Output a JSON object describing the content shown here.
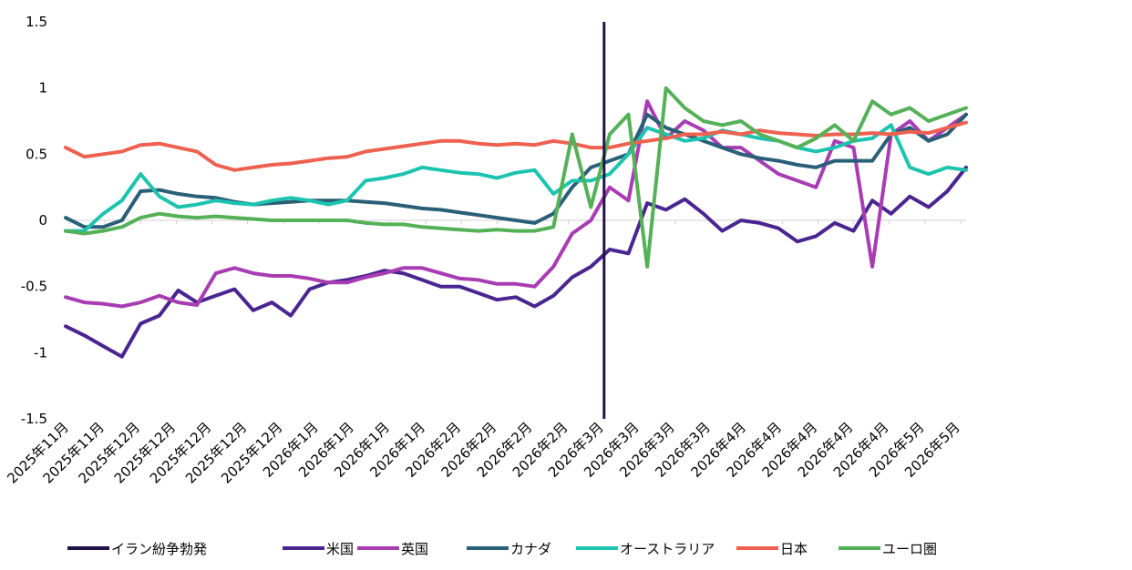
{
  "chart_data": {
    "type": "line",
    "ylim": [
      -1.5,
      1.5
    ],
    "y_ticks": [
      "1.5",
      "1",
      "0.5",
      "0",
      "-0.5",
      "-1",
      "-1.5"
    ],
    "y_tick_values": [
      1.5,
      1,
      0.5,
      0,
      -0.5,
      -1,
      -1.5
    ],
    "x_ticks": [
      "2025年11月",
      "2025年11月",
      "2025年12月",
      "2025年12月",
      "2025年12月",
      "2025年12月",
      "2025年12月",
      "2026年1月",
      "2026年1月",
      "2026年1月",
      "2026年1月",
      "2026年2月",
      "2026年2月",
      "2026年2月",
      "2026年2月",
      "2026年3月",
      "2026年3月",
      "2026年3月",
      "2026年3月",
      "2026年4月",
      "2026年4月",
      "2026年4月",
      "2026年4月",
      "2026年4月",
      "2026年5月",
      "2026年5月"
    ],
    "event": {
      "name": "イラン紛争勃発",
      "x_index": 15,
      "color": "#23124a"
    },
    "grid": false,
    "legend_position": "bottom",
    "series": [
      {
        "name": "米国",
        "color": "#4a2591",
        "values": [
          -0.8,
          -0.87,
          -0.95,
          -1.03,
          -0.78,
          -0.72,
          -0.53,
          -0.62,
          -0.57,
          -0.52,
          -0.68,
          -0.62,
          -0.72,
          -0.52,
          -0.47,
          -0.45,
          -0.42,
          -0.38,
          -0.4,
          -0.45,
          -0.5,
          -0.5,
          -0.55,
          -0.6,
          -0.58,
          -0.65,
          -0.57,
          -0.43,
          -0.35,
          -0.22,
          -0.25,
          0.13,
          0.08,
          0.16,
          0.05,
          -0.08,
          0.0,
          -0.02,
          -0.06,
          -0.16,
          -0.12,
          -0.02,
          -0.08,
          0.15,
          0.05,
          0.18,
          0.1,
          0.22,
          0.4
        ]
      },
      {
        "name": "英国",
        "color": "#a83db3",
        "values": [
          -0.58,
          -0.62,
          -0.63,
          -0.65,
          -0.62,
          -0.57,
          -0.62,
          -0.64,
          -0.4,
          -0.36,
          -0.4,
          -0.42,
          -0.42,
          -0.44,
          -0.47,
          -0.47,
          -0.43,
          -0.4,
          -0.36,
          -0.36,
          -0.4,
          -0.44,
          -0.45,
          -0.48,
          -0.48,
          -0.5,
          -0.35,
          -0.1,
          0.0,
          0.25,
          0.15,
          0.9,
          0.62,
          0.75,
          0.68,
          0.55,
          0.55,
          0.45,
          0.35,
          0.3,
          0.25,
          0.6,
          0.55,
          -0.35,
          0.65,
          0.75,
          0.6,
          0.7,
          0.8
        ]
      },
      {
        "name": "カナダ",
        "color": "#2a5f78",
        "values": [
          0.02,
          -0.05,
          -0.05,
          0.0,
          0.22,
          0.23,
          0.2,
          0.18,
          0.17,
          0.14,
          0.12,
          0.13,
          0.14,
          0.15,
          0.15,
          0.15,
          0.14,
          0.13,
          0.11,
          0.09,
          0.08,
          0.06,
          0.04,
          0.02,
          0.0,
          -0.02,
          0.05,
          0.25,
          0.4,
          0.45,
          0.5,
          0.8,
          0.7,
          0.65,
          0.6,
          0.55,
          0.5,
          0.47,
          0.45,
          0.42,
          0.4,
          0.45,
          0.45,
          0.45,
          0.65,
          0.7,
          0.6,
          0.65,
          0.8
        ]
      },
      {
        "name": "オーストラリア",
        "color": "#1cc4b0",
        "values": [
          -0.08,
          -0.08,
          0.05,
          0.15,
          0.35,
          0.18,
          0.1,
          0.12,
          0.15,
          0.13,
          0.12,
          0.15,
          0.17,
          0.15,
          0.12,
          0.15,
          0.3,
          0.32,
          0.35,
          0.4,
          0.38,
          0.36,
          0.35,
          0.32,
          0.36,
          0.38,
          0.2,
          0.3,
          0.3,
          0.35,
          0.5,
          0.7,
          0.65,
          0.6,
          0.62,
          0.68,
          0.65,
          0.62,
          0.6,
          0.55,
          0.52,
          0.55,
          0.6,
          0.62,
          0.72,
          0.4,
          0.35,
          0.4,
          0.38
        ]
      },
      {
        "name": "日本",
        "color": "#ee6150",
        "values": [
          0.55,
          0.48,
          0.5,
          0.52,
          0.57,
          0.58,
          0.55,
          0.52,
          0.42,
          0.38,
          0.4,
          0.42,
          0.43,
          0.45,
          0.47,
          0.48,
          0.52,
          0.54,
          0.56,
          0.58,
          0.6,
          0.6,
          0.58,
          0.57,
          0.58,
          0.57,
          0.6,
          0.58,
          0.55,
          0.55,
          0.58,
          0.6,
          0.62,
          0.65,
          0.65,
          0.67,
          0.65,
          0.68,
          0.66,
          0.65,
          0.64,
          0.65,
          0.65,
          0.66,
          0.65,
          0.67,
          0.66,
          0.7,
          0.74
        ]
      },
      {
        "name": "ユーロ圏",
        "color": "#55b158",
        "values": [
          -0.08,
          -0.1,
          -0.08,
          -0.05,
          0.02,
          0.05,
          0.03,
          0.02,
          0.03,
          0.02,
          0.01,
          0.0,
          0.0,
          0.0,
          0.0,
          0.0,
          -0.02,
          -0.03,
          -0.03,
          -0.05,
          -0.06,
          -0.07,
          -0.08,
          -0.07,
          -0.08,
          -0.08,
          -0.05,
          0.65,
          0.1,
          0.65,
          0.8,
          -0.35,
          1.0,
          0.85,
          0.75,
          0.72,
          0.75,
          0.65,
          0.6,
          0.55,
          0.62,
          0.72,
          0.6,
          0.9,
          0.8,
          0.85,
          0.75,
          0.8,
          0.85
        ]
      }
    ]
  }
}
